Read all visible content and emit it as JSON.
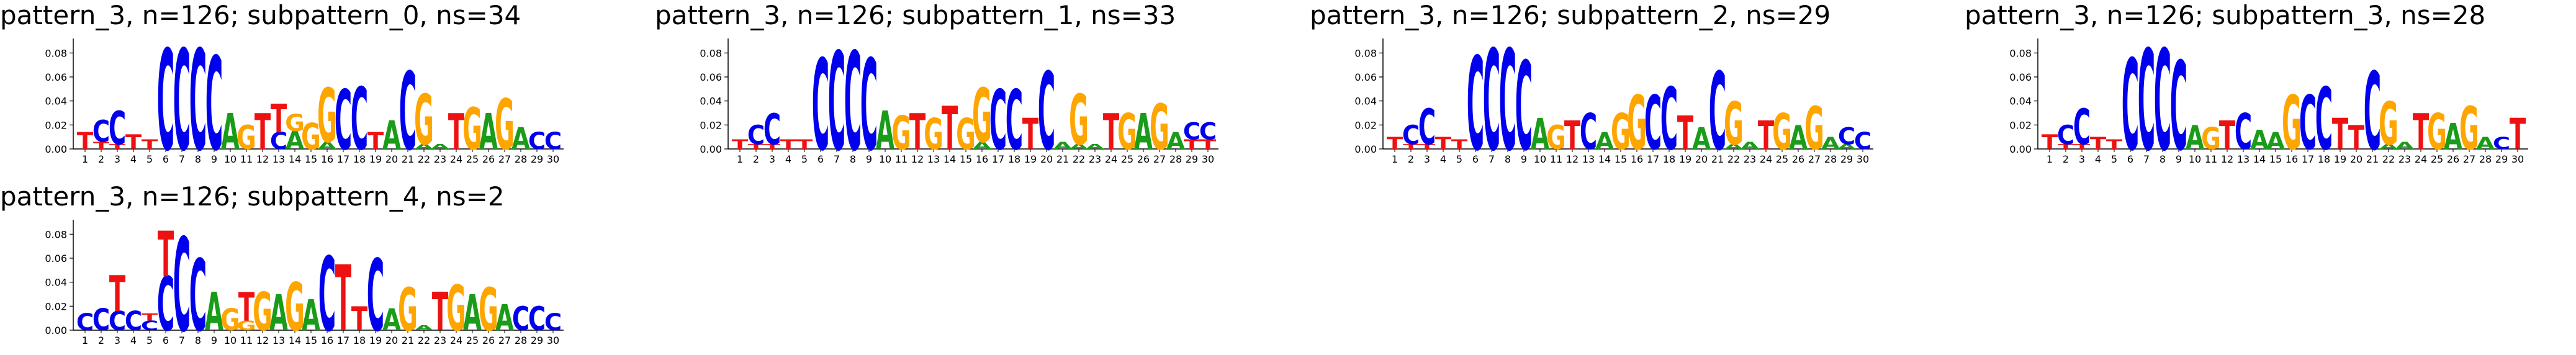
{
  "colors": {
    "A": "#1a9c1a",
    "C": "#0000ee",
    "G": "#ffa500",
    "T": "#ee1111"
  },
  "chart_data": [
    {
      "type": "sequence-logo",
      "title": "pattern_3, n=126; subpattern_0, ns=34",
      "ylim": [
        0,
        0.09
      ],
      "yticks": [
        "0.00",
        "0.02",
        "0.04",
        "0.06",
        "0.08"
      ],
      "positions": [
        "1",
        "2",
        "3",
        "4",
        "5",
        "6",
        "7",
        "8",
        "9",
        "10",
        "11",
        "12",
        "13",
        "14",
        "15",
        "16",
        "17",
        "18",
        "19",
        "20",
        "21",
        "22",
        "23",
        "24",
        "25",
        "26",
        "27",
        "28",
        "29",
        "30"
      ],
      "columns": [
        [
          [
            "T",
            0.014
          ]
        ],
        [
          [
            "T",
            0.006
          ],
          [
            "C",
            0.018
          ]
        ],
        [
          [
            "T",
            0.004
          ],
          [
            "C",
            0.028
          ]
        ],
        [
          [
            "T",
            0.012
          ]
        ],
        [
          [
            "T",
            0.008
          ]
        ],
        [
          [
            "C",
            0.084
          ]
        ],
        [
          [
            "C",
            0.084
          ]
        ],
        [
          [
            "C",
            0.084
          ]
        ],
        [
          [
            "C",
            0.078
          ]
        ],
        [
          [
            "A",
            0.03
          ]
        ],
        [
          [
            "G",
            0.02
          ]
        ],
        [
          [
            "T",
            0.03
          ]
        ],
        [
          [
            "C",
            0.014
          ],
          [
            "T",
            0.024
          ]
        ],
        [
          [
            "A",
            0.015
          ],
          [
            "G",
            0.014
          ]
        ],
        [
          [
            "G",
            0.022
          ]
        ],
        [
          [
            "A",
            0.006
          ],
          [
            "G",
            0.045
          ]
        ],
        [
          [
            "C",
            0.05
          ]
        ],
        [
          [
            "C",
            0.052
          ]
        ],
        [
          [
            "T",
            0.014
          ]
        ],
        [
          [
            "A",
            0.024
          ]
        ],
        [
          [
            "C",
            0.065
          ]
        ],
        [
          [
            "A",
            0.004
          ],
          [
            "G",
            0.042
          ]
        ],
        [
          [
            "A",
            0.004
          ]
        ],
        [
          [
            "T",
            0.03
          ]
        ],
        [
          [
            "G",
            0.035
          ]
        ],
        [
          [
            "A",
            0.03
          ]
        ],
        [
          [
            "G",
            0.042
          ]
        ],
        [
          [
            "A",
            0.018
          ]
        ],
        [
          [
            "C",
            0.014
          ]
        ],
        [
          [
            "C",
            0.014
          ]
        ]
      ]
    },
    {
      "type": "sequence-logo",
      "title": "pattern_3, n=126; subpattern_1, ns=33",
      "ylim": [
        0,
        0.09
      ],
      "yticks": [
        "0.00",
        "0.02",
        "0.04",
        "0.06",
        "0.08"
      ],
      "positions": [
        "1",
        "2",
        "3",
        "4",
        "5",
        "6",
        "7",
        "8",
        "9",
        "10",
        "11",
        "12",
        "13",
        "14",
        "15",
        "16",
        "17",
        "18",
        "19",
        "20",
        "21",
        "22",
        "23",
        "24",
        "25",
        "26",
        "27",
        "28",
        "29",
        "30"
      ],
      "columns": [
        [
          [
            "T",
            0.008
          ]
        ],
        [
          [
            "T",
            0.004
          ],
          [
            "C",
            0.016
          ]
        ],
        [
          [
            "T",
            0.004
          ],
          [
            "C",
            0.026
          ]
        ],
        [
          [
            "T",
            0.008
          ]
        ],
        [
          [
            "T",
            0.008
          ]
        ],
        [
          [
            "C",
            0.076
          ]
        ],
        [
          [
            "C",
            0.082
          ]
        ],
        [
          [
            "C",
            0.082
          ]
        ],
        [
          [
            "C",
            0.076
          ]
        ],
        [
          [
            "A",
            0.032
          ]
        ],
        [
          [
            "G",
            0.028
          ]
        ],
        [
          [
            "T",
            0.03
          ]
        ],
        [
          [
            "G",
            0.026
          ]
        ],
        [
          [
            "T",
            0.036
          ]
        ],
        [
          [
            "G",
            0.026
          ]
        ],
        [
          [
            "A",
            0.006
          ],
          [
            "G",
            0.045
          ]
        ],
        [
          [
            "C",
            0.05
          ]
        ],
        [
          [
            "C",
            0.05
          ]
        ],
        [
          [
            "T",
            0.026
          ]
        ],
        [
          [
            "C",
            0.065
          ]
        ],
        [
          [
            "A",
            0.006
          ]
        ],
        [
          [
            "A",
            0.004
          ],
          [
            "G",
            0.042
          ]
        ],
        [
          [
            "A",
            0.004
          ]
        ],
        [
          [
            "T",
            0.03
          ]
        ],
        [
          [
            "G",
            0.03
          ]
        ],
        [
          [
            "A",
            0.03
          ]
        ],
        [
          [
            "G",
            0.038
          ]
        ],
        [
          [
            "A",
            0.014
          ]
        ],
        [
          [
            "T",
            0.008
          ],
          [
            "C",
            0.014
          ]
        ],
        [
          [
            "T",
            0.008
          ],
          [
            "C",
            0.014
          ]
        ]
      ]
    },
    {
      "type": "sequence-logo",
      "title": "pattern_3, n=126; subpattern_2, ns=29",
      "ylim": [
        0,
        0.09
      ],
      "yticks": [
        "0.00",
        "0.02",
        "0.04",
        "0.06",
        "0.08"
      ],
      "positions": [
        "1",
        "2",
        "3",
        "4",
        "5",
        "6",
        "7",
        "8",
        "9",
        "10",
        "11",
        "12",
        "13",
        "14",
        "15",
        "16",
        "17",
        "18",
        "19",
        "20",
        "21",
        "22",
        "23",
        "24",
        "25",
        "26",
        "27",
        "28",
        "29",
        "30"
      ],
      "columns": [
        [
          [
            "T",
            0.01
          ]
        ],
        [
          [
            "T",
            0.004
          ],
          [
            "C",
            0.016
          ]
        ],
        [
          [
            "T",
            0.004
          ],
          [
            "C",
            0.03
          ]
        ],
        [
          [
            "T",
            0.01
          ]
        ],
        [
          [
            "T",
            0.008
          ]
        ],
        [
          [
            "C",
            0.078
          ]
        ],
        [
          [
            "C",
            0.084
          ]
        ],
        [
          [
            "C",
            0.084
          ]
        ],
        [
          [
            "C",
            0.074
          ]
        ],
        [
          [
            "A",
            0.026
          ]
        ],
        [
          [
            "G",
            0.02
          ]
        ],
        [
          [
            "T",
            0.024
          ]
        ],
        [
          [
            "C",
            0.03
          ]
        ],
        [
          [
            "A",
            0.014
          ]
        ],
        [
          [
            "G",
            0.03
          ]
        ],
        [
          [
            "G",
            0.045
          ]
        ],
        [
          [
            "C",
            0.045
          ]
        ],
        [
          [
            "C",
            0.052
          ]
        ],
        [
          [
            "T",
            0.028
          ]
        ],
        [
          [
            "A",
            0.018
          ]
        ],
        [
          [
            "C",
            0.065
          ]
        ],
        [
          [
            "A",
            0.004
          ],
          [
            "G",
            0.036
          ]
        ],
        [
          [
            "A",
            0.006
          ]
        ],
        [
          [
            "T",
            0.024
          ]
        ],
        [
          [
            "G",
            0.03
          ]
        ],
        [
          [
            "A",
            0.02
          ]
        ],
        [
          [
            "G",
            0.036
          ]
        ],
        [
          [
            "A",
            0.01
          ]
        ],
        [
          [
            "A",
            0.004
          ],
          [
            "C",
            0.014
          ]
        ],
        [
          [
            "C",
            0.014
          ]
        ]
      ]
    },
    {
      "type": "sequence-logo",
      "title": "pattern_3, n=126; subpattern_3, ns=28",
      "ylim": [
        0,
        0.09
      ],
      "yticks": [
        "0.00",
        "0.02",
        "0.04",
        "0.06",
        "0.08"
      ],
      "positions": [
        "1",
        "2",
        "3",
        "4",
        "5",
        "6",
        "7",
        "8",
        "9",
        "10",
        "11",
        "12",
        "13",
        "14",
        "15",
        "16",
        "17",
        "18",
        "19",
        "20",
        "21",
        "22",
        "23",
        "24",
        "25",
        "26",
        "27",
        "28",
        "29",
        "30"
      ],
      "columns": [
        [
          [
            "T",
            0.012
          ]
        ],
        [
          [
            "T",
            0.004
          ],
          [
            "C",
            0.016
          ]
        ],
        [
          [
            "T",
            0.004
          ],
          [
            "C",
            0.03
          ]
        ],
        [
          [
            "T",
            0.01
          ]
        ],
        [
          [
            "T",
            0.008
          ]
        ],
        [
          [
            "C",
            0.076
          ]
        ],
        [
          [
            "C",
            0.084
          ]
        ],
        [
          [
            "C",
            0.084
          ]
        ],
        [
          [
            "C",
            0.074
          ]
        ],
        [
          [
            "A",
            0.02
          ]
        ],
        [
          [
            "G",
            0.018
          ]
        ],
        [
          [
            "T",
            0.024
          ]
        ],
        [
          [
            "C",
            0.03
          ]
        ],
        [
          [
            "A",
            0.016
          ]
        ],
        [
          [
            "A",
            0.014
          ]
        ],
        [
          [
            "G",
            0.045
          ]
        ],
        [
          [
            "C",
            0.045
          ]
        ],
        [
          [
            "C",
            0.052
          ]
        ],
        [
          [
            "T",
            0.026
          ]
        ],
        [
          [
            "T",
            0.02
          ]
        ],
        [
          [
            "C",
            0.065
          ]
        ],
        [
          [
            "A",
            0.004
          ],
          [
            "G",
            0.036
          ]
        ],
        [
          [
            "A",
            0.006
          ]
        ],
        [
          [
            "T",
            0.03
          ]
        ],
        [
          [
            "G",
            0.03
          ]
        ],
        [
          [
            "A",
            0.022
          ]
        ],
        [
          [
            "G",
            0.036
          ]
        ],
        [
          [
            "A",
            0.01
          ]
        ],
        [
          [
            "C",
            0.01
          ]
        ],
        [
          [
            "T",
            0.026
          ]
        ]
      ]
    },
    {
      "type": "sequence-logo",
      "title": "pattern_3, n=126; subpattern_4, ns=2",
      "ylim": [
        0,
        0.09
      ],
      "yticks": [
        "0.00",
        "0.02",
        "0.04",
        "0.06",
        "0.08"
      ],
      "positions": [
        "1",
        "2",
        "3",
        "4",
        "5",
        "6",
        "7",
        "8",
        "9",
        "10",
        "11",
        "12",
        "13",
        "14",
        "15",
        "16",
        "17",
        "18",
        "19",
        "20",
        "21",
        "22",
        "23",
        "24",
        "25",
        "26",
        "27",
        "28",
        "29",
        "30"
      ],
      "columns": [
        [
          [
            "C",
            0.014
          ]
        ],
        [
          [
            "C",
            0.018
          ]
        ],
        [
          [
            "C",
            0.016
          ],
          [
            "T",
            0.03
          ]
        ],
        [
          [
            "C",
            0.016
          ]
        ],
        [
          [
            "C",
            0.008
          ],
          [
            "T",
            0.006
          ]
        ],
        [
          [
            "C",
            0.045
          ],
          [
            "T",
            0.038
          ]
        ],
        [
          [
            "C",
            0.078
          ]
        ],
        [
          [
            "C",
            0.06
          ]
        ],
        [
          [
            "A",
            0.032
          ]
        ],
        [
          [
            "G",
            0.018
          ]
        ],
        [
          [
            "G",
            0.008
          ],
          [
            "T",
            0.024
          ]
        ],
        [
          [
            "G",
            0.032
          ]
        ],
        [
          [
            "A",
            0.03
          ]
        ],
        [
          [
            "G",
            0.04
          ]
        ],
        [
          [
            "A",
            0.026
          ]
        ],
        [
          [
            "C",
            0.062
          ]
        ],
        [
          [
            "T",
            0.055
          ]
        ],
        [
          [
            "T",
            0.02
          ]
        ],
        [
          [
            "C",
            0.06
          ]
        ],
        [
          [
            "A",
            0.018
          ]
        ],
        [
          [
            "G",
            0.036
          ]
        ],
        [
          [
            "A",
            0.004
          ]
        ],
        [
          [
            "T",
            0.032
          ]
        ],
        [
          [
            "G",
            0.038
          ]
        ],
        [
          [
            "A",
            0.03
          ]
        ],
        [
          [
            "G",
            0.036
          ]
        ],
        [
          [
            "A",
            0.022
          ]
        ],
        [
          [
            "C",
            0.02
          ]
        ],
        [
          [
            "C",
            0.02
          ]
        ],
        [
          [
            "C",
            0.014
          ]
        ]
      ]
    }
  ]
}
